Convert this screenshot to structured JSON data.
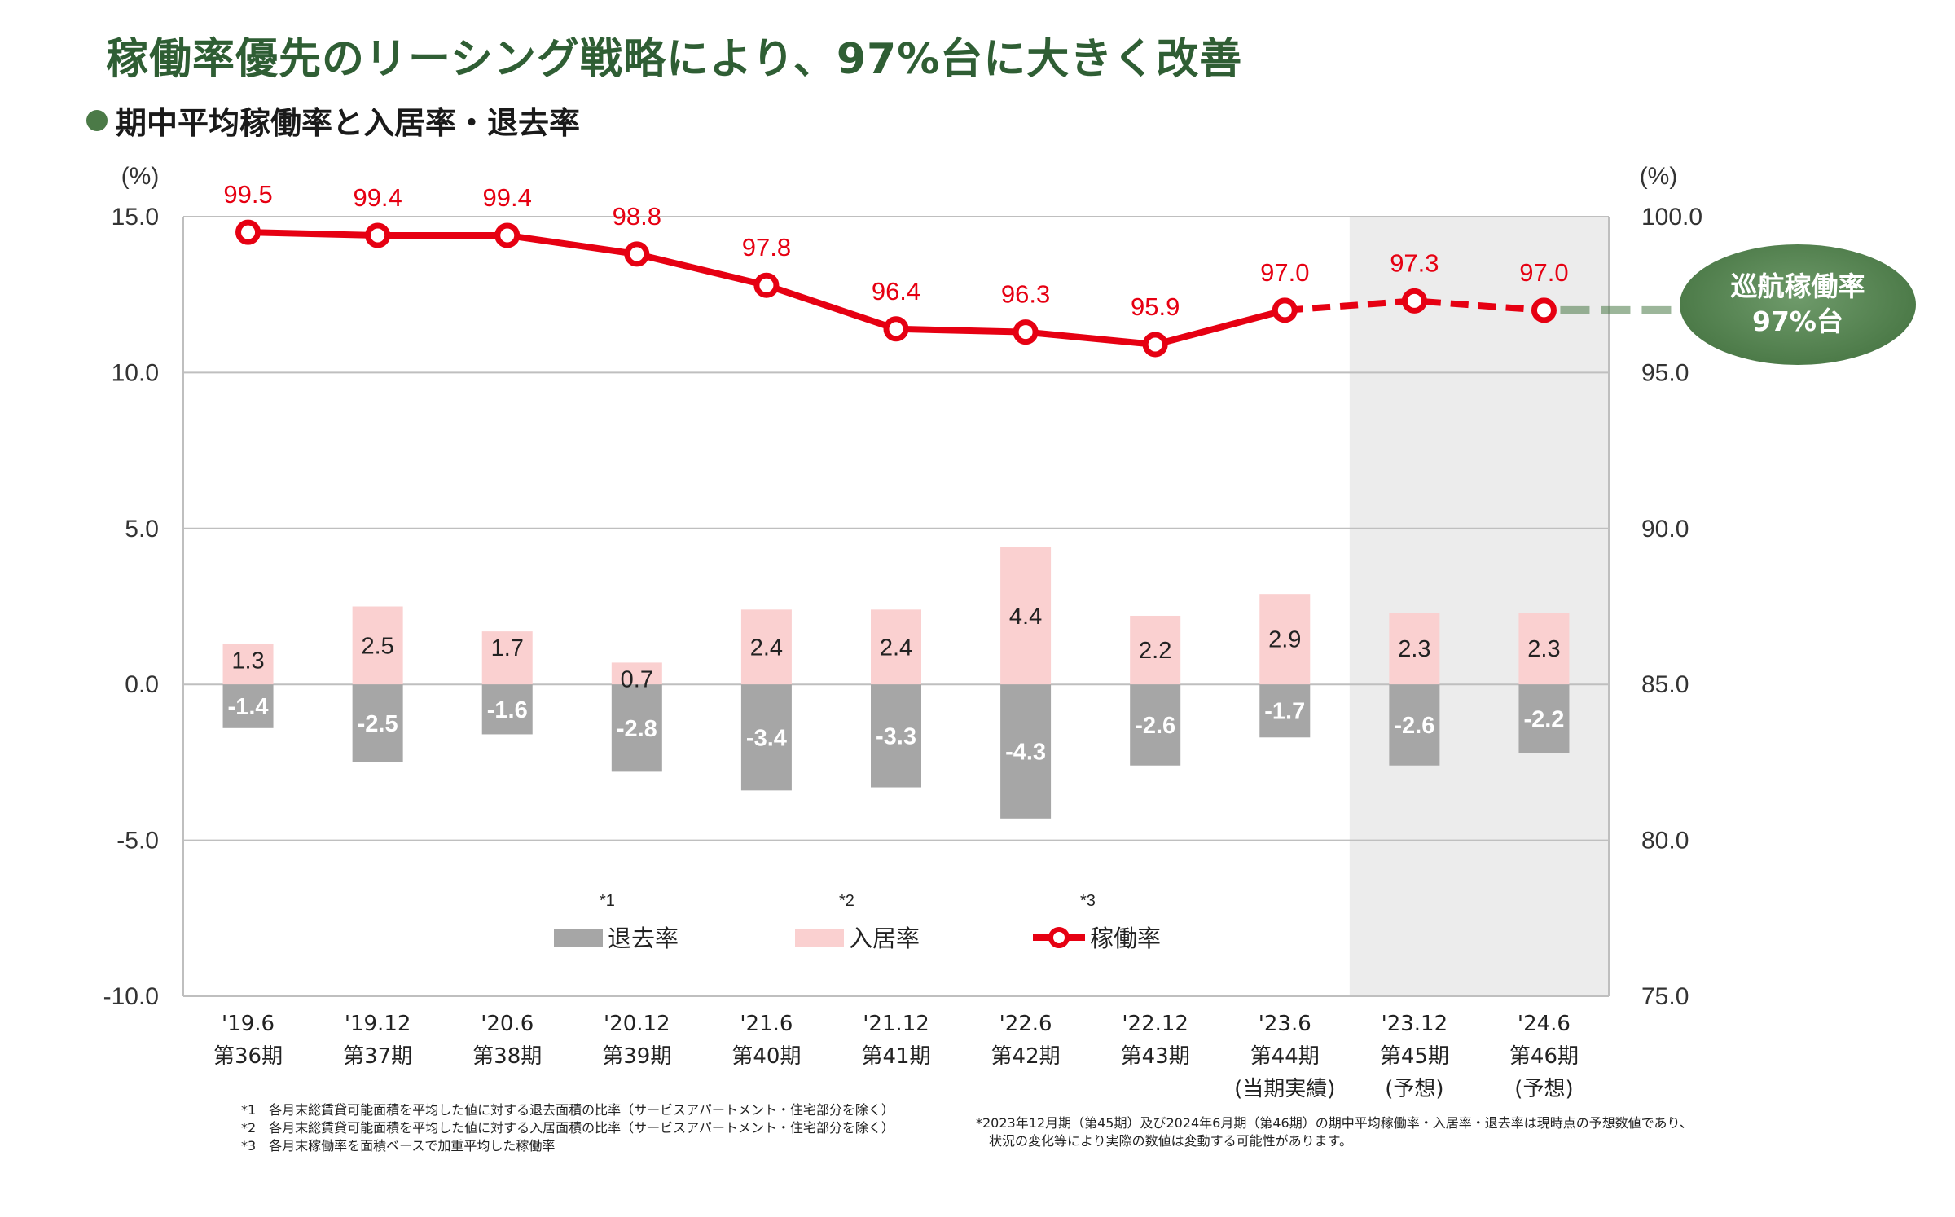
{
  "title": "稼働率優先のリーシング戦略により、97%台に大きく改善",
  "subtitle": "期中平均稼働率と入居率・退去率",
  "badge": {
    "line1": "巡航稼働率",
    "line2": "97%台"
  },
  "legend": {
    "out": {
      "label": "退去率",
      "note": "*1"
    },
    "in": {
      "label": "入居率",
      "note": "*2"
    },
    "rate": {
      "label": "稼働率",
      "note": "*3"
    }
  },
  "colors": {
    "rate_line": "#e60012",
    "in_bar": "#fad0d0",
    "out_bar": "#a6a6a6",
    "forecast_bg": "#ececec",
    "badge_green": "#4d7b49",
    "title_green": "#2f5e34"
  },
  "footnotes_left": [
    "*1　各月末総賃貸可能面積を平均した値に対する退去面積の比率（サービスアパートメント・住宅部分を除く）",
    "*2　各月末総賃貸可能面積を平均した値に対する入居面積の比率（サービスアパートメント・住宅部分を除く）",
    "*3　各月末稼働率を面積ベースで加重平均した稼働率"
  ],
  "footnotes_right": [
    "*2023年12月期（第45期）及び2024年6月期（第46期）の期中平均稼働率・入居率・退去率は現時点の予想数値であり、",
    "　状況の変化等により実際の数値は変動する可能性があります。"
  ],
  "chart_data": {
    "type": "bar",
    "categories": [
      "'19.6",
      "'19.12",
      "'20.6",
      "'20.12",
      "'21.6",
      "'21.12",
      "'22.6",
      "'22.12",
      "'23.6",
      "'23.12",
      "'24.6"
    ],
    "category_sublabels": [
      "第36期",
      "第37期",
      "第38期",
      "第39期",
      "第40期",
      "第41期",
      "第42期",
      "第43期",
      "第44期",
      "第45期",
      "第46期"
    ],
    "category_notes": [
      "",
      "",
      "",
      "",
      "",
      "",
      "",
      "",
      "(当期実績)",
      "(予想)",
      "(予想)"
    ],
    "y_left": {
      "unit": "(%)",
      "ylim": [
        -10,
        15
      ],
      "ticks": [
        "15.0",
        "10.0",
        "5.0",
        "0.0",
        "-5.0",
        "-10.0"
      ]
    },
    "y_right": {
      "unit": "(%)",
      "ylim": [
        75,
        100
      ],
      "ticks": [
        "100.0",
        "95.0",
        "90.0",
        "85.0",
        "80.0",
        "75.0"
      ]
    },
    "forecast_from_index": 9,
    "series": [
      {
        "name": "退去率",
        "axis": "left",
        "type": "bar",
        "values": [
          -1.4,
          -2.5,
          -1.6,
          -2.8,
          -3.4,
          -3.3,
          -4.3,
          -2.6,
          -1.7,
          -2.6,
          -2.2
        ]
      },
      {
        "name": "入居率",
        "axis": "left",
        "type": "bar",
        "values": [
          1.3,
          2.5,
          1.7,
          0.7,
          2.4,
          2.4,
          4.4,
          2.2,
          2.9,
          2.3,
          2.3
        ]
      },
      {
        "name": "稼働率",
        "axis": "right",
        "type": "line",
        "values": [
          99.5,
          99.4,
          99.4,
          98.8,
          97.8,
          96.4,
          96.3,
          95.9,
          97.0,
          97.3,
          97.0
        ]
      }
    ],
    "grid": true,
    "legend_position": "bottom-center"
  }
}
